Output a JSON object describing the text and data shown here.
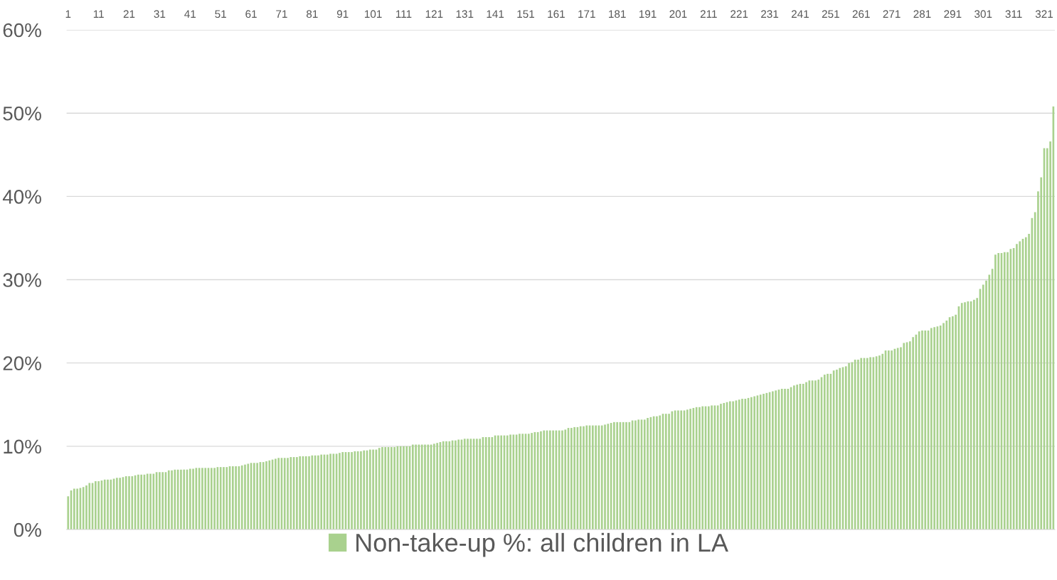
{
  "chart_data": {
    "type": "bar",
    "categories": [
      "1",
      null,
      null,
      null,
      null,
      null,
      null,
      null,
      null,
      null,
      "11",
      null,
      null,
      null,
      null,
      null,
      null,
      null,
      null,
      null,
      "21",
      null,
      null,
      null,
      null,
      null,
      null,
      null,
      null,
      null,
      "31",
      null,
      null,
      null,
      null,
      null,
      null,
      null,
      null,
      null,
      "41",
      null,
      null,
      null,
      null,
      null,
      null,
      null,
      null,
      null,
      "51",
      null,
      null,
      null,
      null,
      null,
      null,
      null,
      null,
      null,
      "61",
      null,
      null,
      null,
      null,
      null,
      null,
      null,
      null,
      null,
      "71",
      null,
      null,
      null,
      null,
      null,
      null,
      null,
      null,
      null,
      "81",
      null,
      null,
      null,
      null,
      null,
      null,
      null,
      null,
      null,
      "91",
      null,
      null,
      null,
      null,
      null,
      null,
      null,
      null,
      null,
      "101",
      null,
      null,
      null,
      null,
      null,
      null,
      null,
      null,
      null,
      "111",
      null,
      null,
      null,
      null,
      null,
      null,
      null,
      null,
      null,
      "121",
      null,
      null,
      null,
      null,
      null,
      null,
      null,
      null,
      null,
      "131",
      null,
      null,
      null,
      null,
      null,
      null,
      null,
      null,
      null,
      "141",
      null,
      null,
      null,
      null,
      null,
      null,
      null,
      null,
      null,
      "151",
      null,
      null,
      null,
      null,
      null,
      null,
      null,
      null,
      null,
      "161",
      null,
      null,
      null,
      null,
      null,
      null,
      null,
      null,
      null,
      "171",
      null,
      null,
      null,
      null,
      null,
      null,
      null,
      null,
      null,
      "181",
      null,
      null,
      null,
      null,
      null,
      null,
      null,
      null,
      null,
      "191",
      null,
      null,
      null,
      null,
      null,
      null,
      null,
      null,
      null,
      "201",
      null,
      null,
      null,
      null,
      null,
      null,
      null,
      null,
      null,
      "211",
      null,
      null,
      null,
      null,
      null,
      null,
      null,
      null,
      null,
      "221",
      null,
      null,
      null,
      null,
      null,
      null,
      null,
      null,
      null,
      "231",
      null,
      null,
      null,
      null,
      null,
      null,
      null,
      null,
      null,
      "241",
      null,
      null,
      null,
      null,
      null,
      null,
      null,
      null,
      null,
      "251",
      null,
      null,
      null,
      null,
      null,
      null,
      null,
      null,
      null,
      "261",
      null,
      null,
      null,
      null,
      null,
      null,
      null,
      null,
      null,
      "271",
      null,
      null,
      null,
      null,
      null,
      null,
      null,
      null,
      null,
      "281",
      null,
      null,
      null,
      null,
      null,
      null,
      null,
      null,
      null,
      "291",
      null,
      null,
      null,
      null,
      null,
      null,
      null,
      null,
      null,
      "301",
      null,
      null,
      null,
      null,
      null,
      null,
      null,
      null,
      null,
      "311",
      null,
      null,
      null,
      null,
      null,
      null,
      null,
      null,
      null,
      "321",
      null,
      null,
      null
    ],
    "series": [
      {
        "name": "Non-take-up %: all children in LA",
        "color": "#a9d18e",
        "values": [
          4.0,
          4.7,
          4.9,
          4.9,
          5.0,
          5.1,
          5.3,
          5.6,
          5.6,
          5.8,
          5.8,
          5.9,
          6.0,
          6.0,
          6.0,
          6.1,
          6.2,
          6.2,
          6.3,
          6.4,
          6.4,
          6.4,
          6.5,
          6.6,
          6.6,
          6.6,
          6.7,
          6.7,
          6.7,
          6.9,
          6.9,
          6.9,
          6.9,
          7.1,
          7.1,
          7.2,
          7.2,
          7.2,
          7.2,
          7.2,
          7.3,
          7.3,
          7.4,
          7.4,
          7.4,
          7.4,
          7.4,
          7.4,
          7.4,
          7.5,
          7.5,
          7.5,
          7.5,
          7.6,
          7.6,
          7.6,
          7.6,
          7.7,
          7.8,
          7.9,
          8.0,
          8.0,
          8.0,
          8.1,
          8.1,
          8.2,
          8.3,
          8.4,
          8.5,
          8.6,
          8.6,
          8.6,
          8.6,
          8.7,
          8.7,
          8.7,
          8.8,
          8.8,
          8.8,
          8.8,
          8.9,
          8.9,
          8.9,
          9.0,
          9.0,
          9.0,
          9.1,
          9.1,
          9.1,
          9.2,
          9.3,
          9.3,
          9.3,
          9.3,
          9.4,
          9.4,
          9.4,
          9.5,
          9.5,
          9.6,
          9.6,
          9.6,
          9.8,
          9.9,
          9.9,
          9.9,
          9.9,
          9.9,
          10.0,
          10.0,
          10.0,
          10.0,
          10.0,
          10.2,
          10.2,
          10.2,
          10.2,
          10.2,
          10.2,
          10.2,
          10.3,
          10.4,
          10.5,
          10.6,
          10.6,
          10.6,
          10.7,
          10.7,
          10.8,
          10.8,
          10.9,
          10.9,
          10.9,
          10.9,
          10.9,
          10.9,
          11.1,
          11.1,
          11.1,
          11.1,
          11.3,
          11.3,
          11.3,
          11.3,
          11.3,
          11.4,
          11.4,
          11.4,
          11.5,
          11.5,
          11.5,
          11.5,
          11.6,
          11.7,
          11.7,
          11.8,
          11.9,
          11.9,
          11.9,
          11.9,
          11.9,
          11.9,
          11.9,
          12.0,
          12.2,
          12.2,
          12.3,
          12.3,
          12.4,
          12.4,
          12.5,
          12.5,
          12.5,
          12.5,
          12.5,
          12.5,
          12.6,
          12.7,
          12.8,
          12.9,
          12.9,
          12.9,
          12.9,
          12.9,
          12.9,
          13.1,
          13.1,
          13.2,
          13.2,
          13.2,
          13.4,
          13.5,
          13.6,
          13.6,
          13.7,
          13.9,
          13.9,
          13.9,
          14.2,
          14.3,
          14.3,
          14.3,
          14.3,
          14.4,
          14.5,
          14.6,
          14.7,
          14.7,
          14.8,
          14.8,
          14.8,
          14.9,
          14.9,
          14.9,
          15.1,
          15.2,
          15.3,
          15.4,
          15.4,
          15.5,
          15.6,
          15.7,
          15.7,
          15.8,
          15.9,
          16.0,
          16.1,
          16.2,
          16.3,
          16.4,
          16.5,
          16.6,
          16.7,
          16.8,
          16.9,
          16.9,
          16.9,
          17.1,
          17.3,
          17.4,
          17.5,
          17.5,
          17.7,
          17.9,
          17.9,
          17.9,
          18.0,
          18.3,
          18.6,
          18.7,
          18.7,
          19.1,
          19.2,
          19.4,
          19.5,
          19.6,
          20.0,
          20.1,
          20.4,
          20.4,
          20.6,
          20.6,
          20.6,
          20.7,
          20.7,
          20.8,
          20.9,
          21.1,
          21.5,
          21.5,
          21.5,
          21.7,
          21.8,
          21.9,
          22.4,
          22.5,
          22.6,
          23.1,
          23.4,
          23.8,
          23.9,
          23.9,
          23.9,
          24.2,
          24.3,
          24.4,
          24.5,
          24.8,
          25.1,
          25.5,
          25.6,
          25.8,
          26.8,
          27.2,
          27.3,
          27.4,
          27.4,
          27.6,
          27.8,
          28.9,
          29.4,
          29.9,
          30.6,
          31.3,
          33.0,
          33.2,
          33.2,
          33.3,
          33.3,
          33.7,
          33.8,
          34.3,
          34.6,
          34.9,
          35.1,
          35.5,
          37.4,
          38.1,
          40.6,
          42.3,
          45.8,
          45.8,
          46.6,
          50.8
        ]
      }
    ],
    "ylim": [
      0,
      60
    ],
    "yticks": [
      {
        "value": 0,
        "label": "0%"
      },
      {
        "value": 10,
        "label": "10%"
      },
      {
        "value": 20,
        "label": "20%"
      },
      {
        "value": 30,
        "label": "30%"
      },
      {
        "value": 40,
        "label": "40%"
      },
      {
        "value": 50,
        "label": "50%"
      },
      {
        "value": 60,
        "label": "60%"
      }
    ],
    "grid": "y",
    "legend": "bottom"
  }
}
